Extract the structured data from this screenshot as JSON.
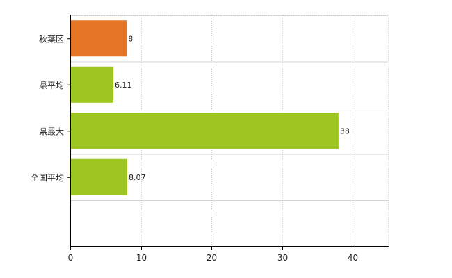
{
  "chart_data": {
    "type": "bar",
    "orientation": "horizontal",
    "categories": [
      "秋葉区",
      "県平均",
      "県最大",
      "全国平均"
    ],
    "values": [
      8,
      6.11,
      38,
      8.07
    ],
    "data_labels": [
      "8",
      "6.11",
      "38",
      "8.07"
    ],
    "x_ticks": [
      "0",
      "10",
      "20",
      "30",
      "40"
    ],
    "xlim": [
      0,
      45
    ],
    "grid": true,
    "grid_style": "dotted vertical, solid horizontal",
    "bar_colors": [
      "#e57525",
      "#9ec623",
      "#9ec623",
      "#9ec623"
    ],
    "title": "",
    "xlabel": "",
    "ylabel": ""
  }
}
